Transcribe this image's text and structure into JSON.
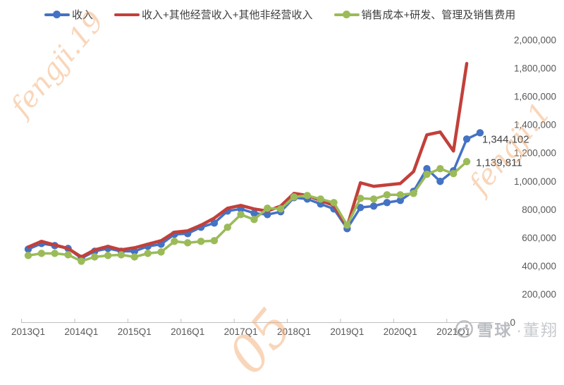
{
  "legend": [
    {
      "label": "收入",
      "color": "#4472C4",
      "marker": "line-dot"
    },
    {
      "label": "收入+其他经营收入+其他非经营收入",
      "color": "#C2403A",
      "marker": "line"
    },
    {
      "label": "销售成本+研发、管理及销售费用",
      "color": "#9BBB59",
      "marker": "line-dot"
    }
  ],
  "chart_data": {
    "type": "line",
    "title": "",
    "xlabel": "",
    "ylabel": "",
    "grid": false,
    "legend_position": "top",
    "ylim": [
      0,
      2000000
    ],
    "x": [
      "2013Q1",
      "2013Q2",
      "2013Q3",
      "2013Q4",
      "2014Q1",
      "2014Q2",
      "2014Q3",
      "2014Q4",
      "2015Q1",
      "2015Q2",
      "2015Q3",
      "2015Q4",
      "2016Q1",
      "2016Q2",
      "2016Q3",
      "2016Q4",
      "2017Q1",
      "2017Q2",
      "2017Q3",
      "2017Q4",
      "2018Q1",
      "2018Q2",
      "2018Q3",
      "2018Q4",
      "2019Q1",
      "2019Q2",
      "2019Q3",
      "2019Q4",
      "2020Q1",
      "2020Q2",
      "2020Q3",
      "2020Q4",
      "2021Q1",
      "2021Q2",
      "2021Q3"
    ],
    "series": [
      {
        "name": "收入",
        "color": "#4472C4",
        "marker": true,
        "line_width": 3.5,
        "end_label": "1,344,102",
        "values": [
          520000,
          560000,
          545000,
          525000,
          455000,
          505000,
          525000,
          505000,
          505000,
          540000,
          555000,
          625000,
          630000,
          675000,
          705000,
          790000,
          805000,
          775000,
          765000,
          785000,
          885000,
          875000,
          840000,
          805000,
          665000,
          815000,
          825000,
          850000,
          865000,
          930000,
          1090000,
          1000000,
          1075000,
          1300000,
          1344102
        ]
      },
      {
        "name": "收入+其他经营收入+其他非经营收入",
        "color": "#C2403A",
        "marker": false,
        "line_width": 4.5,
        "end_label": null,
        "values": [
          535000,
          575000,
          550000,
          525000,
          465000,
          515000,
          540000,
          515000,
          530000,
          555000,
          580000,
          640000,
          650000,
          690000,
          740000,
          810000,
          830000,
          805000,
          790000,
          825000,
          915000,
          900000,
          865000,
          830000,
          680000,
          990000,
          965000,
          975000,
          985000,
          1070000,
          1330000,
          1350000,
          1215000,
          1835000,
          null
        ]
      },
      {
        "name": "销售成本+研发、管理及销售费用",
        "color": "#9BBB59",
        "marker": true,
        "line_width": 3.5,
        "end_label": "1,139,811",
        "values": [
          475000,
          490000,
          490000,
          480000,
          435000,
          465000,
          475000,
          480000,
          465000,
          490000,
          500000,
          575000,
          565000,
          575000,
          580000,
          675000,
          765000,
          730000,
          810000,
          805000,
          890000,
          900000,
          875000,
          850000,
          690000,
          880000,
          875000,
          905000,
          905000,
          915000,
          1050000,
          1090000,
          1055000,
          1139811,
          null
        ]
      }
    ],
    "y_ticks": [
      {
        "value": 0,
        "label": "0"
      },
      {
        "value": 200000,
        "label": "200,000"
      },
      {
        "value": 400000,
        "label": "400,000"
      },
      {
        "value": 600000,
        "label": "600,000"
      },
      {
        "value": 800000,
        "label": "800,000"
      },
      {
        "value": 1000000,
        "label": "1,000,000"
      },
      {
        "value": 1200000,
        "label": "1,200,000"
      },
      {
        "value": 1400000,
        "label": "1,400,000"
      },
      {
        "value": 1600000,
        "label": "1,600,000"
      },
      {
        "value": 1800000,
        "label": "1,800,000"
      },
      {
        "value": 2000000,
        "label": "2,000,000"
      }
    ],
    "x_ticks": [
      {
        "index": 0,
        "label": "2013Q1"
      },
      {
        "index": 4,
        "label": "2014Q1"
      },
      {
        "index": 8,
        "label": "2015Q1"
      },
      {
        "index": 12,
        "label": "2016Q1"
      },
      {
        "index": 16,
        "label": "2017Q1"
      },
      {
        "index": 20,
        "label": "2018Q1"
      },
      {
        "index": 24,
        "label": "2019Q1"
      },
      {
        "index": 28,
        "label": "2020Q1"
      },
      {
        "index": 32,
        "label": "2021Q1"
      }
    ]
  },
  "watermark": {
    "fragment_top_left": "fengji.19",
    "fragment_bottom": "05",
    "fragment_right": "fengji.1"
  },
  "branding": {
    "site": "雪球",
    "author": "·董翔"
  }
}
